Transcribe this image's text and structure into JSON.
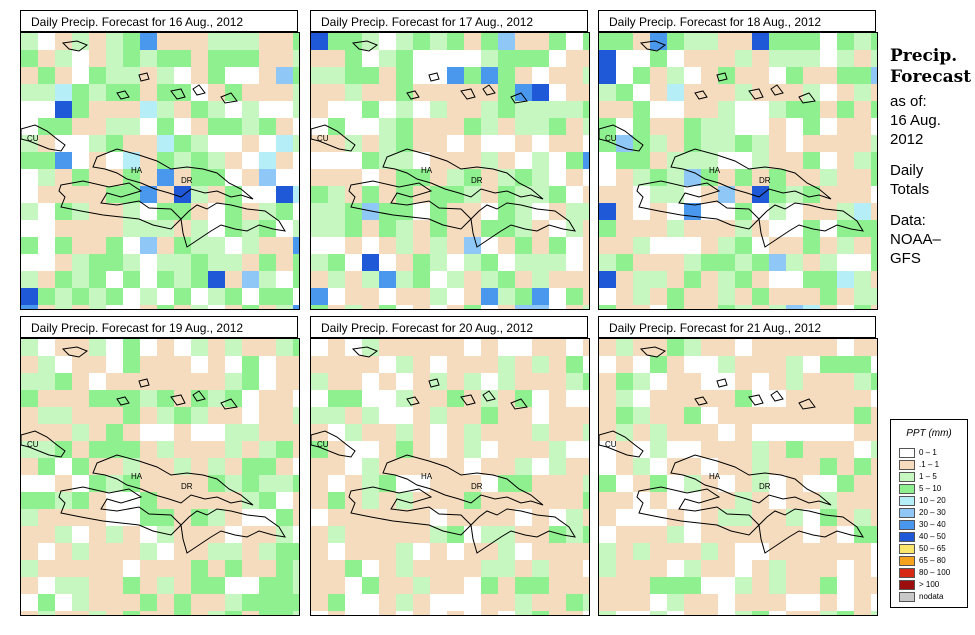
{
  "panels": [
    {
      "title": "Daily Precip. Forecast for  16 Aug., 2012",
      "seed": 11,
      "wet": 0.62,
      "heavy": true
    },
    {
      "title": "Daily Precip. Forecast for  17 Aug., 2012",
      "seed": 23,
      "wet": 0.55,
      "heavy": true
    },
    {
      "title": "Daily Precip. Forecast for  18 Aug., 2012",
      "seed": 37,
      "wet": 0.55,
      "heavy": true
    },
    {
      "title": "Daily Precip. Forecast for  19 Aug., 2012",
      "seed": 41,
      "wet": 0.4,
      "heavy": false
    },
    {
      "title": "Daily Precip. Forecast for  20 Aug., 2012",
      "seed": 53,
      "wet": 0.25,
      "heavy": false
    },
    {
      "title": "Daily Precip. Forecast for  21 Aug., 2012",
      "seed": 67,
      "wet": 0.22,
      "heavy": false
    }
  ],
  "map_labels": {
    "cuba": "CU",
    "haiti": "HA",
    "dominican_republic": "DR"
  },
  "side": {
    "heading": "Precip. Forecast",
    "as_of_label": "as of:",
    "date_line1": "16 Aug.",
    "date_line2": "2012",
    "totals_line1": "Daily",
    "totals_line2": "Totals",
    "data_line1": "Data:",
    "data_line2": "NOAA–",
    "data_line3": "GFS"
  },
  "legend": {
    "title": "PPT (mm)",
    "items": [
      {
        "label": "0 – 1",
        "color": "#ffffff"
      },
      {
        "label": ".1 – 1",
        "color": "#f5dcbe"
      },
      {
        "label": "1 – 5",
        "color": "#c6f7c0"
      },
      {
        "label": "5 – 10",
        "color": "#8ef08e"
      },
      {
        "label": "10 – 20",
        "color": "#b6eef7"
      },
      {
        "label": "20 – 30",
        "color": "#8fc8f6"
      },
      {
        "label": "30 – 40",
        "color": "#4a98ee"
      },
      {
        "label": "40 – 50",
        "color": "#1f59d8"
      },
      {
        "label": "50 – 65",
        "color": "#f9e66a"
      },
      {
        "label": "65 – 80",
        "color": "#f7a21c"
      },
      {
        "label": "80 – 100",
        "color": "#d72a14"
      },
      {
        "label": "> 100",
        "color": "#9c0d0d"
      },
      {
        "label": "nodata",
        "color": "#c8c8c8"
      }
    ]
  }
}
